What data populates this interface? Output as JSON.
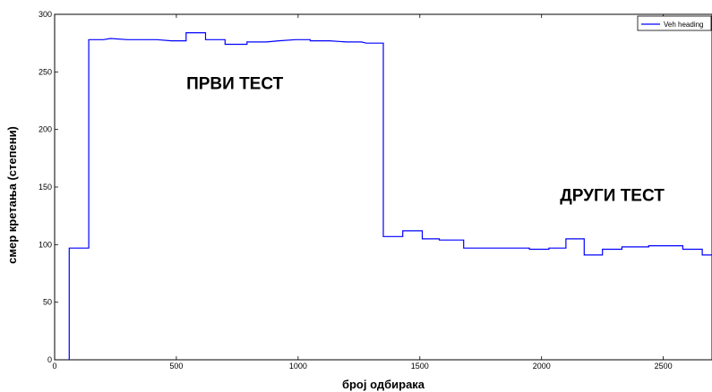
{
  "chart_data": {
    "type": "line",
    "xlabel": "број одбирака",
    "ylabel": "смер кретања (степени)",
    "xlim": [
      0,
      2700
    ],
    "ylim": [
      0,
      300
    ],
    "x_ticks": [
      0,
      500,
      1000,
      1500,
      2000,
      2500
    ],
    "y_ticks": [
      0,
      50,
      100,
      150,
      200,
      250,
      300
    ],
    "grid": false,
    "legend": "top-right",
    "series": [
      {
        "name": "Veh heading",
        "color": "#0000ff",
        "step": true,
        "points": [
          [
            60,
            0
          ],
          [
            60,
            97
          ],
          [
            140,
            97
          ],
          [
            140,
            278
          ],
          [
            200,
            278
          ],
          [
            230,
            279
          ],
          [
            300,
            278
          ],
          [
            420,
            278
          ],
          [
            480,
            277
          ],
          [
            540,
            277
          ],
          [
            540,
            284
          ],
          [
            620,
            284
          ],
          [
            620,
            278
          ],
          [
            700,
            278
          ],
          [
            700,
            274
          ],
          [
            790,
            274
          ],
          [
            790,
            276
          ],
          [
            870,
            276
          ],
          [
            920,
            277
          ],
          [
            990,
            278
          ],
          [
            1050,
            278
          ],
          [
            1050,
            277
          ],
          [
            1130,
            277
          ],
          [
            1200,
            276
          ],
          [
            1260,
            276
          ],
          [
            1280,
            275
          ],
          [
            1350,
            275
          ],
          [
            1350,
            107
          ],
          [
            1430,
            107
          ],
          [
            1430,
            112
          ],
          [
            1510,
            112
          ],
          [
            1510,
            105
          ],
          [
            1580,
            105
          ],
          [
            1580,
            104
          ],
          [
            1680,
            104
          ],
          [
            1680,
            97
          ],
          [
            1800,
            97
          ],
          [
            1950,
            97
          ],
          [
            1950,
            96
          ],
          [
            2030,
            96
          ],
          [
            2030,
            97
          ],
          [
            2100,
            97
          ],
          [
            2100,
            105
          ],
          [
            2175,
            105
          ],
          [
            2175,
            91
          ],
          [
            2250,
            91
          ],
          [
            2250,
            96
          ],
          [
            2330,
            96
          ],
          [
            2330,
            98
          ],
          [
            2440,
            98
          ],
          [
            2440,
            99
          ],
          [
            2580,
            99
          ],
          [
            2580,
            96
          ],
          [
            2660,
            96
          ],
          [
            2660,
            91
          ],
          [
            2700,
            91
          ]
        ]
      }
    ],
    "annotations": [
      {
        "text": "ПРВИ ТЕСТ",
        "x": 740,
        "y": 235
      },
      {
        "text": "ДРУГИ ТЕСТ",
        "x": 2290,
        "y": 138
      }
    ]
  }
}
